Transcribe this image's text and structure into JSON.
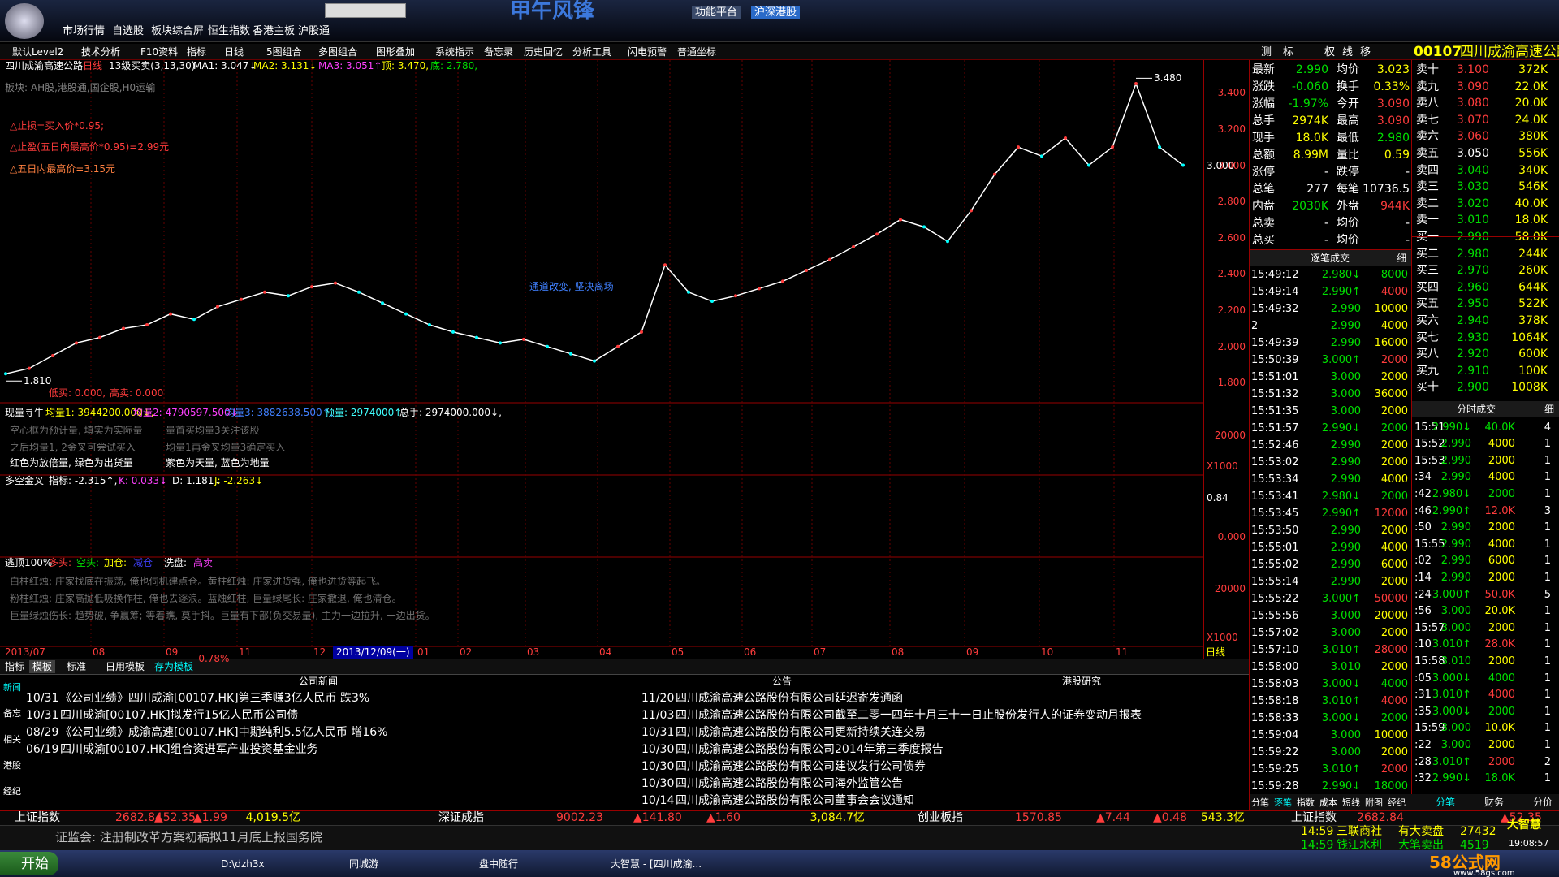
{
  "top_bar": {
    "menu": [
      "市场行情",
      "自选股",
      "板块综合屏",
      "恒生指数",
      "香港主板",
      "沪股通"
    ],
    "title": "甲午风锋",
    "buttons": [
      "功能平台",
      "沪深港股"
    ]
  },
  "toolbar": {
    "items": [
      "默认Level2",
      "技术分析",
      "F10资料",
      "指标",
      "日线",
      "5图组合",
      "多图组合",
      "图形叠加",
      "系统指示",
      "备忘录",
      "历史回忆",
      "分析工具",
      "闪电预警",
      "普通坐标"
    ],
    "right_items": [
      "测",
      "标",
      "权",
      "线",
      "移"
    ],
    "code": "00107",
    "name": "四川成渝高速公路"
  },
  "chart_header": {
    "name": "四川成渝高速公路",
    "period": "日线",
    "indicator": "13级买卖(3,13,30)",
    "ma1": "MA1: 3.047↓",
    "ma2": "MA2: 3.131↓",
    "ma3": "MA3: 3.051↑",
    "top": "顶: 3.470,",
    "bottom": "底: 2.780,",
    "sector": "板块: AH股,港股通,国企股,H0运输",
    "notes": [
      "△止损=买入价*0.95;",
      "△止盈(五日内最高价*0.95)=2.99元",
      "△五日内最高价=3.15元"
    ],
    "annotation": "通道改变, 坚决离场",
    "low_buy": "低买: 0.000,",
    "high_sell": "高卖: 0.000"
  },
  "chart_data": {
    "type": "line",
    "color": "#ffffff",
    "values": [
      1.85,
      1.88,
      1.95,
      2.02,
      2.05,
      2.1,
      2.12,
      2.18,
      2.15,
      2.22,
      2.26,
      2.3,
      2.28,
      2.33,
      2.35,
      2.3,
      2.24,
      2.18,
      2.12,
      2.08,
      2.05,
      2.02,
      2.04,
      2.0,
      1.96,
      1.92,
      2.0,
      2.08,
      2.45,
      2.3,
      2.25,
      2.28,
      2.32,
      2.36,
      2.42,
      2.48,
      2.55,
      2.62,
      2.7,
      2.66,
      2.58,
      2.75,
      2.95,
      3.1,
      3.05,
      3.15,
      3.0,
      3.1,
      3.45,
      3.1,
      3.0
    ],
    "ylim": [
      1.69,
      3.58
    ],
    "yticks": [
      {
        "value": 3.4,
        "label": "3.400"
      },
      {
        "value": 3.2,
        "label": "3.200"
      },
      {
        "value": 3.0,
        "label": "3.000"
      },
      {
        "value": 2.8,
        "label": "2.800"
      },
      {
        "value": 2.6,
        "label": "2.600"
      },
      {
        "value": 2.4,
        "label": "2.400"
      },
      {
        "value": 2.2,
        "label": "2.200"
      },
      {
        "value": 2.0,
        "label": "2.000"
      },
      {
        "value": 1.8,
        "label": "1.800"
      }
    ],
    "last_price": {
      "value": 3.0,
      "label": "3.000"
    },
    "high_mark": {
      "value": 3.48,
      "label": "3.480"
    },
    "low_mark": {
      "value": 1.81,
      "label": "1.810"
    },
    "x_labels": [
      "2013/07",
      "08",
      "09",
      "11",
      "12",
      "2013/12/09(一)",
      "01",
      "02",
      "03",
      "04",
      "05",
      "06",
      "07",
      "08",
      "09",
      "10",
      "11",
      "日线"
    ]
  },
  "volume_pane": {
    "title": "现量寻牛",
    "items": [
      "均量1: 3944200.000↓,",
      "均量2: 4790597.500↓,",
      "均量3: 3882638.500↑,",
      "预量: 2974000↑,",
      "总手: 2974000.000↓,"
    ],
    "notes": [
      "空心框为预计量, 填实为实际量",
      "量首买均量3关注该股",
      "之后均量1, 2金叉可尝试买入",
      "均量1再金叉均量3确定买入",
      "红色为放倍量, 绿色为出货量",
      "紫色为天量, 蓝色为地量"
    ],
    "axis": [
      "20000",
      "X1000"
    ]
  },
  "kdj_pane": {
    "title": "多空金叉",
    "items": [
      "指标: -2.315↑,",
      "K: 0.033↓",
      "D: 1.181↓",
      "J: -2.263↓"
    ],
    "axis": [
      "0.84",
      "0.000"
    ]
  },
  "escape_pane": {
    "title": "逃顶100%",
    "items": [
      "多头:",
      "空头:",
      "加仓:",
      "减仓",
      "洗盘:",
      "高卖"
    ],
    "notes": [
      "白柱红烛: 庄家找底在振荡, 俺也伺机建点仓。黄柱红烛: 庄家进货强, 俺也进货等起飞。",
      "粉柱红烛: 庄家高抛低吸换作柱, 俺也去逐浪。蓝烛红柱, 巨量绿尾长: 庄家撤退, 俺也清仓。",
      "巨量绿烛伤长: 趋势破, 争赢筹; 等着瞧, 莫手抖。巨量有下部(负交易量), 主力一边拉升, 一边出货。"
    ],
    "axis": [
      "20000",
      "X1000"
    ],
    "change": "-0.78%"
  },
  "tabs": [
    "指标",
    "模板",
    "标准",
    "日用模板",
    "存为模板"
  ],
  "side_tabs": [
    "新闻",
    "备忘",
    "相关",
    "港股",
    "经纪"
  ],
  "news": {
    "headers": [
      "公司新闻",
      "公告",
      "港股研究"
    ],
    "company": [
      [
        "10/31",
        "《公司业绩》四川成渝[00107.HK]第三季赚3亿人民币 跌3%"
      ],
      [
        "10/31",
        "四川成渝[00107.HK]拟发行15亿人民币公司债"
      ],
      [
        "08/29",
        "《公司业绩》成渝高速[00107.HK]中期纯利5.5亿人民币 增16%"
      ],
      [
        "06/19",
        "四川成渝[00107.HK]组合资进军产业投资基金业务"
      ]
    ],
    "announcements": [
      [
        "11/20",
        "四川成渝高速公路股份有限公司延迟寄发通函"
      ],
      [
        "11/03",
        "四川成渝高速公路股份有限公司截至二零一四年十月三十一日止股份发行人的证券变动月报表"
      ],
      [
        "10/31",
        "四川成渝高速公路股份有限公司更新持续关连交易"
      ],
      [
        "10/30",
        "四川成渝高速公路股份有限公司2014年第三季度报告"
      ],
      [
        "10/30",
        "四川成渝高速公路股份有限公司建议发行公司债券"
      ],
      [
        "10/30",
        "四川成渝高速公路股份有限公司海外监管公告"
      ],
      [
        "10/14",
        "四川成渝高速公路股份有限公司董事会会议通知"
      ]
    ]
  },
  "quote": {
    "rows": [
      [
        "最新",
        "2.990",
        "均价",
        "3.023"
      ],
      [
        "涨跌",
        "-0.060",
        "换手",
        "0.33%"
      ],
      [
        "涨幅",
        "-1.97%",
        "今开",
        "3.090"
      ],
      [
        "总手",
        "2974K",
        "最高",
        "3.090"
      ],
      [
        "现手",
        "18.0K",
        "最低",
        "2.980"
      ],
      [
        "总额",
        "8.99M",
        "量比",
        "0.59"
      ],
      [
        "涨停",
        "-",
        "跌停",
        "-"
      ],
      [
        "总笔",
        "277",
        "每笔",
        "10736.5"
      ],
      [
        "内盘",
        "2030K",
        "外盘",
        "944K"
      ],
      [
        "总卖",
        "-",
        "均价",
        "-"
      ],
      [
        "总买",
        "-",
        "均价",
        "-"
      ]
    ]
  },
  "order_book": [
    [
      "卖十",
      "3.100",
      "372K"
    ],
    [
      "卖九",
      "3.090",
      "22.0K"
    ],
    [
      "卖八",
      "3.080",
      "20.0K"
    ],
    [
      "卖七",
      "3.070",
      "24.0K"
    ],
    [
      "卖六",
      "3.060",
      "380K"
    ],
    [
      "卖五",
      "3.050",
      "556K"
    ],
    [
      "卖四",
      "3.040",
      "340K"
    ],
    [
      "卖三",
      "3.030",
      "546K"
    ],
    [
      "卖二",
      "3.020",
      "40.0K"
    ],
    [
      "卖一",
      "3.010",
      "18.0K"
    ],
    [
      "买一",
      "2.990",
      "58.0K"
    ],
    [
      "买二",
      "2.980",
      "244K"
    ],
    [
      "买三",
      "2.970",
      "260K"
    ],
    [
      "买四",
      "2.960",
      "644K"
    ],
    [
      "买五",
      "2.950",
      "522K"
    ],
    [
      "买六",
      "2.940",
      "378K"
    ],
    [
      "买七",
      "2.930",
      "1064K"
    ],
    [
      "买八",
      "2.920",
      "600K"
    ],
    [
      "买九",
      "2.910",
      "100K"
    ],
    [
      "买十",
      "2.900",
      "1008K"
    ]
  ],
  "ticks": {
    "title": "逐笔成交",
    "button": "细",
    "rows": [
      [
        "15:49:12",
        "2.980↓",
        "8000"
      ],
      [
        "15:49:14",
        "2.990↑",
        "4000"
      ],
      [
        "15:49:32",
        "2.990",
        "10000"
      ],
      [
        "2",
        "2.990",
        "4000"
      ],
      [
        "15:49:39",
        "2.990",
        "16000"
      ],
      [
        "15:50:39",
        "3.000↑",
        "2000"
      ],
      [
        "15:51:01",
        "3.000",
        "2000"
      ],
      [
        "15:51:32",
        "3.000",
        "36000"
      ],
      [
        "15:51:35",
        "3.000",
        "2000"
      ],
      [
        "15:51:57",
        "2.990↓",
        "2000"
      ],
      [
        "15:52:46",
        "2.990",
        "2000"
      ],
      [
        "15:53:02",
        "2.990",
        "2000"
      ],
      [
        "15:53:34",
        "2.990",
        "4000"
      ],
      [
        "15:53:41",
        "2.980↓",
        "2000"
      ],
      [
        "15:53:45",
        "2.990↑",
        "12000"
      ],
      [
        "15:53:50",
        "2.990",
        "2000"
      ],
      [
        "15:55:01",
        "2.990",
        "4000"
      ],
      [
        "15:55:02",
        "2.990",
        "6000"
      ],
      [
        "15:55:14",
        "2.990",
        "2000"
      ],
      [
        "15:55:22",
        "3.000↑",
        "50000"
      ],
      [
        "15:55:56",
        "3.000",
        "20000"
      ],
      [
        "15:57:02",
        "3.000",
        "2000"
      ],
      [
        "15:57:10",
        "3.010↑",
        "28000"
      ],
      [
        "15:58:00",
        "3.010",
        "2000"
      ],
      [
        "15:58:03",
        "3.000↓",
        "4000"
      ],
      [
        "15:58:18",
        "3.010↑",
        "4000"
      ],
      [
        "15:58:33",
        "3.000↓",
        "2000"
      ],
      [
        "15:59:04",
        "3.000",
        "10000"
      ],
      [
        "15:59:22",
        "3.000",
        "2000"
      ],
      [
        "15:59:25",
        "3.010↑",
        "2000"
      ],
      [
        "15:59:28",
        "2.990↓",
        "18000"
      ]
    ]
  },
  "minute_ticks": {
    "title": "分时成交",
    "button": "细",
    "rows": [
      [
        "15:51",
        "2.990↓",
        "40.0K",
        "4"
      ],
      [
        "15:52",
        "2.990",
        "4000",
        "1"
      ],
      [
        "15:53",
        "2.990",
        "2000",
        "1"
      ],
      [
        ":34",
        "2.990",
        "4000",
        "1"
      ],
      [
        ":42",
        "2.980↓",
        "2000",
        "1"
      ],
      [
        ":46",
        "2.990↑",
        "12.0K",
        "3"
      ],
      [
        ":50",
        "2.990",
        "2000",
        "1"
      ],
      [
        "15:55",
        "2.990",
        "4000",
        "1"
      ],
      [
        ":02",
        "2.990",
        "6000",
        "1"
      ],
      [
        ":14",
        "2.990",
        "2000",
        "1"
      ],
      [
        ":24",
        "3.000↑",
        "50.0K",
        "5"
      ],
      [
        ":56",
        "3.000",
        "20.0K",
        "1"
      ],
      [
        "15:57",
        "3.000",
        "2000",
        "1"
      ],
      [
        ":10",
        "3.010↑",
        "28.0K",
        "1"
      ],
      [
        "15:58",
        "3.010",
        "2000",
        "1"
      ],
      [
        ":05",
        "3.000↓",
        "4000",
        "1"
      ],
      [
        ":31",
        "3.010↑",
        "4000",
        "1"
      ],
      [
        ":35",
        "3.000↓",
        "2000",
        "1"
      ],
      [
        "15:59",
        "3.000",
        "10.0K",
        "1"
      ],
      [
        ":22",
        "3.000",
        "2000",
        "1"
      ],
      [
        ":28",
        "3.010↑",
        "2000",
        "2"
      ],
      [
        ":32",
        "2.990↓",
        "18.0K",
        "1"
      ]
    ]
  },
  "bottom_tabs_left": [
    "分笔",
    "逐笔",
    "指数",
    "成本",
    "短线",
    "附图",
    "经纪"
  ],
  "bottom_tabs_right": [
    "分笔",
    "财务",
    "分价"
  ],
  "index_bar": {
    "items": [
      [
        "上证指数",
        "2682.84",
        "▲52.35",
        "▲1.99",
        "4,019.5亿"
      ],
      [
        "深证成指",
        "9002.23",
        "▲141.80",
        "▲1.60",
        "3,084.7亿"
      ],
      [
        "创业板指",
        "1570.85",
        "▲7.44",
        "▲0.48",
        "543.3亿"
      ]
    ],
    "right": [
      "上证指数",
      "2682.84",
      "▲52.35"
    ]
  },
  "ticker": {
    "text": "证监会: 注册制改革方案初稿拟11月底上报国务院",
    "alerts": [
      [
        "14:59",
        "三联商社",
        "有大卖盘",
        "27432"
      ],
      [
        "14:59",
        "钱江水利",
        "大笔卖出",
        "4519"
      ]
    ],
    "brand": "大智慧",
    "clock": "19:08:57"
  },
  "taskbar": {
    "start": "开始",
    "items": [
      "D:\\dzh3x",
      "同城游",
      "盘中随行",
      "大智慧 - [四川成渝..."
    ],
    "watermark": "58公式网",
    "url": "www.58gs.com"
  }
}
